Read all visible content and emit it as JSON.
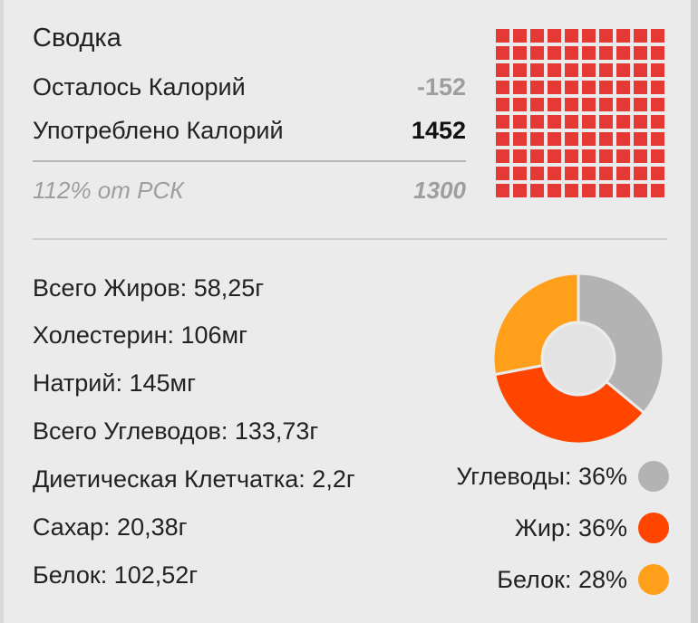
{
  "summary": {
    "title": "Сводка",
    "remaining_label": "Осталось Калорий",
    "remaining_value": "-152",
    "consumed_label": "Употреблено Калорий",
    "consumed_value": "1452",
    "rsk_label": "112% от РСК",
    "rsk_value": "1300",
    "waffle_fill_fraction": 1.0,
    "waffle_color": "#e53935"
  },
  "nutrients": [
    "Всего Жиров: 58,25г",
    "Холестерин: 106мг",
    "Натрий: 145мг",
    "Всего Углеводов: 133,73г",
    "Диетическая Клетчатка: 2,2г",
    "Сахар: 20,38г",
    "Белок: 102,52г"
  ],
  "macros": {
    "legend": [
      {
        "label": "Углеводы: 36%",
        "color": "#b3b3b3"
      },
      {
        "label": "Жир: 36%",
        "color": "#ff4500"
      },
      {
        "label": "Белок: 28%",
        "color": "#ff9f1a"
      }
    ]
  },
  "chart_data": {
    "type": "pie",
    "title": "",
    "categories": [
      "Углеводы",
      "Жир",
      "Белок"
    ],
    "values": [
      36,
      36,
      28
    ],
    "colors": [
      "#b3b3b3",
      "#ff4500",
      "#ff9f1a"
    ],
    "donut": true,
    "legend": "right-bottom"
  }
}
